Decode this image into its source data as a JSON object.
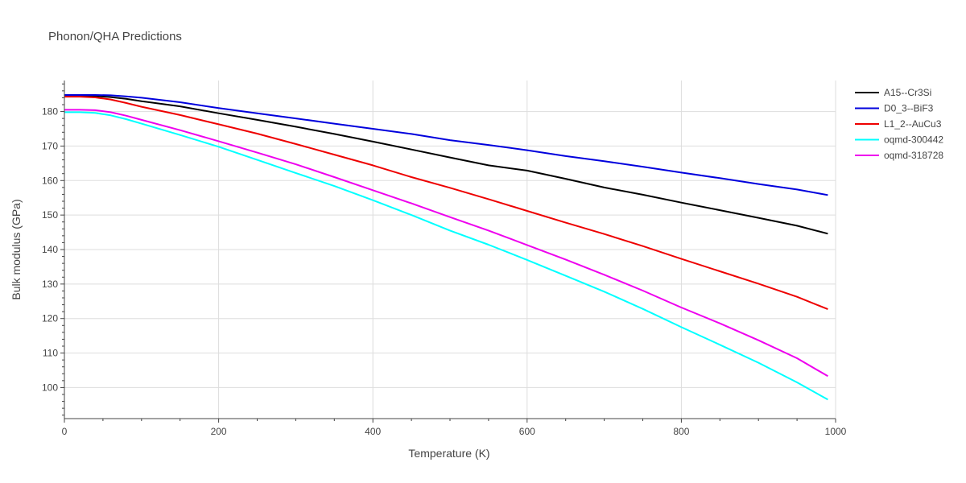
{
  "chart_data": {
    "type": "line",
    "title": "Phonon/QHA Predictions",
    "xlabel": "Temperature (K)",
    "ylabel": "Bulk modulus (GPa)",
    "xlim": [
      0,
      1000
    ],
    "ylim": [
      91,
      189
    ],
    "x_ticks": [
      0,
      200,
      400,
      600,
      800,
      1000
    ],
    "y_ticks": [
      100,
      110,
      120,
      130,
      140,
      150,
      160,
      170,
      180
    ],
    "grid": true,
    "legend_position": "top-right",
    "series": [
      {
        "name": "A15--Cr3Si",
        "color": "#000000",
        "points": [
          [
            0,
            184.6
          ],
          [
            20,
            184.6
          ],
          [
            40,
            184.5
          ],
          [
            60,
            184.2
          ],
          [
            80,
            183.7
          ],
          [
            100,
            183.0
          ],
          [
            150,
            181.5
          ],
          [
            200,
            179.5
          ],
          [
            250,
            177.6
          ],
          [
            300,
            175.6
          ],
          [
            350,
            173.5
          ],
          [
            400,
            171.3
          ],
          [
            450,
            169.0
          ],
          [
            500,
            166.7
          ],
          [
            550,
            164.4
          ],
          [
            600,
            162.9
          ],
          [
            650,
            160.5
          ],
          [
            700,
            158.0
          ],
          [
            750,
            155.9
          ],
          [
            800,
            153.6
          ],
          [
            850,
            151.4
          ],
          [
            900,
            149.2
          ],
          [
            950,
            146.9
          ],
          [
            990,
            144.6
          ]
        ]
      },
      {
        "name": "D0_3--BiF3",
        "color": "#0000dd",
        "points": [
          [
            0,
            184.8
          ],
          [
            20,
            184.8
          ],
          [
            40,
            184.8
          ],
          [
            60,
            184.7
          ],
          [
            80,
            184.4
          ],
          [
            100,
            184.0
          ],
          [
            150,
            182.7
          ],
          [
            200,
            181.0
          ],
          [
            250,
            179.5
          ],
          [
            300,
            178.0
          ],
          [
            350,
            176.5
          ],
          [
            400,
            175.0
          ],
          [
            450,
            173.5
          ],
          [
            500,
            171.7
          ],
          [
            550,
            170.3
          ],
          [
            600,
            168.8
          ],
          [
            650,
            167.1
          ],
          [
            700,
            165.6
          ],
          [
            750,
            164.0
          ],
          [
            800,
            162.3
          ],
          [
            850,
            160.7
          ],
          [
            900,
            159.0
          ],
          [
            950,
            157.4
          ],
          [
            990,
            155.8
          ]
        ]
      },
      {
        "name": "L1_2--AuCu3",
        "color": "#ee0000",
        "points": [
          [
            0,
            184.3
          ],
          [
            20,
            184.3
          ],
          [
            40,
            184.1
          ],
          [
            60,
            183.5
          ],
          [
            80,
            182.5
          ],
          [
            100,
            181.4
          ],
          [
            150,
            179.0
          ],
          [
            200,
            176.3
          ],
          [
            250,
            173.6
          ],
          [
            300,
            170.6
          ],
          [
            350,
            167.5
          ],
          [
            400,
            164.4
          ],
          [
            450,
            161.0
          ],
          [
            500,
            157.9
          ],
          [
            550,
            154.6
          ],
          [
            600,
            151.2
          ],
          [
            650,
            147.8
          ],
          [
            700,
            144.5
          ],
          [
            750,
            141.0
          ],
          [
            800,
            137.3
          ],
          [
            850,
            133.7
          ],
          [
            900,
            130.1
          ],
          [
            950,
            126.3
          ],
          [
            990,
            122.7
          ]
        ]
      },
      {
        "name": "oqmd-300442",
        "color": "#00ffff",
        "points": [
          [
            0,
            179.8
          ],
          [
            20,
            179.8
          ],
          [
            40,
            179.6
          ],
          [
            60,
            178.9
          ],
          [
            80,
            177.8
          ],
          [
            100,
            176.5
          ],
          [
            150,
            173.2
          ],
          [
            200,
            169.8
          ],
          [
            250,
            166.0
          ],
          [
            300,
            162.2
          ],
          [
            350,
            158.4
          ],
          [
            400,
            154.3
          ],
          [
            450,
            150.0
          ],
          [
            500,
            145.5
          ],
          [
            550,
            141.4
          ],
          [
            600,
            137.0
          ],
          [
            650,
            132.4
          ],
          [
            700,
            127.8
          ],
          [
            750,
            122.8
          ],
          [
            800,
            117.5
          ],
          [
            850,
            112.4
          ],
          [
            900,
            107.2
          ],
          [
            950,
            101.5
          ],
          [
            990,
            96.5
          ]
        ]
      },
      {
        "name": "oqmd-318728",
        "color": "#ee00ee",
        "points": [
          [
            0,
            180.5
          ],
          [
            20,
            180.5
          ],
          [
            40,
            180.4
          ],
          [
            60,
            179.8
          ],
          [
            80,
            178.8
          ],
          [
            100,
            177.6
          ],
          [
            150,
            174.6
          ],
          [
            200,
            171.4
          ],
          [
            250,
            168.1
          ],
          [
            300,
            164.7
          ],
          [
            350,
            161.0
          ],
          [
            400,
            157.2
          ],
          [
            450,
            153.4
          ],
          [
            500,
            149.4
          ],
          [
            550,
            145.5
          ],
          [
            600,
            141.3
          ],
          [
            650,
            137.1
          ],
          [
            700,
            132.7
          ],
          [
            750,
            128.1
          ],
          [
            800,
            123.2
          ],
          [
            850,
            118.6
          ],
          [
            900,
            113.7
          ],
          [
            950,
            108.5
          ],
          [
            990,
            103.3
          ]
        ]
      }
    ]
  }
}
